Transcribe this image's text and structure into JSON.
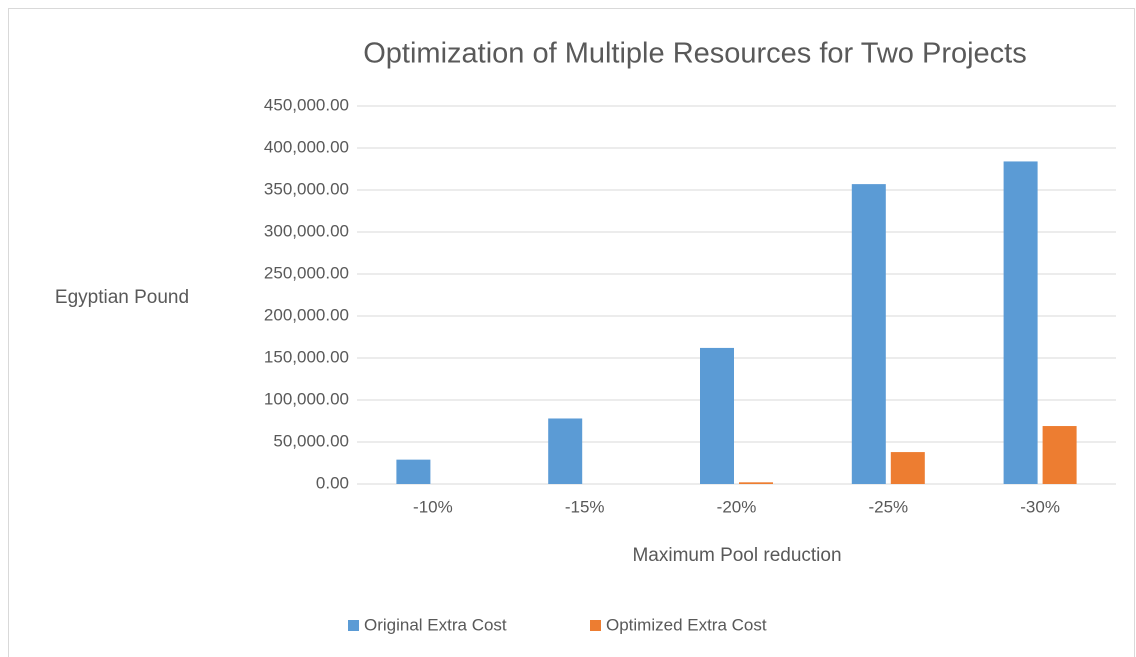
{
  "chart_data": {
    "type": "bar",
    "title": "Optimization of Multiple Resources for Two Projects",
    "x_label": "Maximum Pool reduction",
    "y_label": "Egyptian Pound",
    "categories": [
      "-10%",
      "-15%",
      "-20%",
      "-25%",
      "-30%"
    ],
    "series": [
      {
        "name": "Original Extra Cost",
        "color": "#5b9bd5",
        "values": [
          29000,
          78000,
          162000,
          357000,
          384000
        ]
      },
      {
        "name": "Optimized Extra Cost",
        "color": "#ed7d31",
        "values": [
          0,
          0,
          2000,
          38000,
          69000
        ]
      }
    ],
    "ylim": [
      0,
      450000
    ],
    "yticks": [
      {
        "value": 0,
        "label": "0.00"
      },
      {
        "value": 50000,
        "label": "50,000.00"
      },
      {
        "value": 100000,
        "label": "100,000.00"
      },
      {
        "value": 150000,
        "label": "150,000.00"
      },
      {
        "value": 200000,
        "label": "200,000.00"
      },
      {
        "value": 250000,
        "label": "250,000.00"
      },
      {
        "value": 300000,
        "label": "300,000.00"
      },
      {
        "value": 350000,
        "label": "350,000.00"
      },
      {
        "value": 400000,
        "label": "400,000.00"
      },
      {
        "value": 450000,
        "label": "450,000.00"
      }
    ],
    "grid": true,
    "legend": "bottom"
  }
}
